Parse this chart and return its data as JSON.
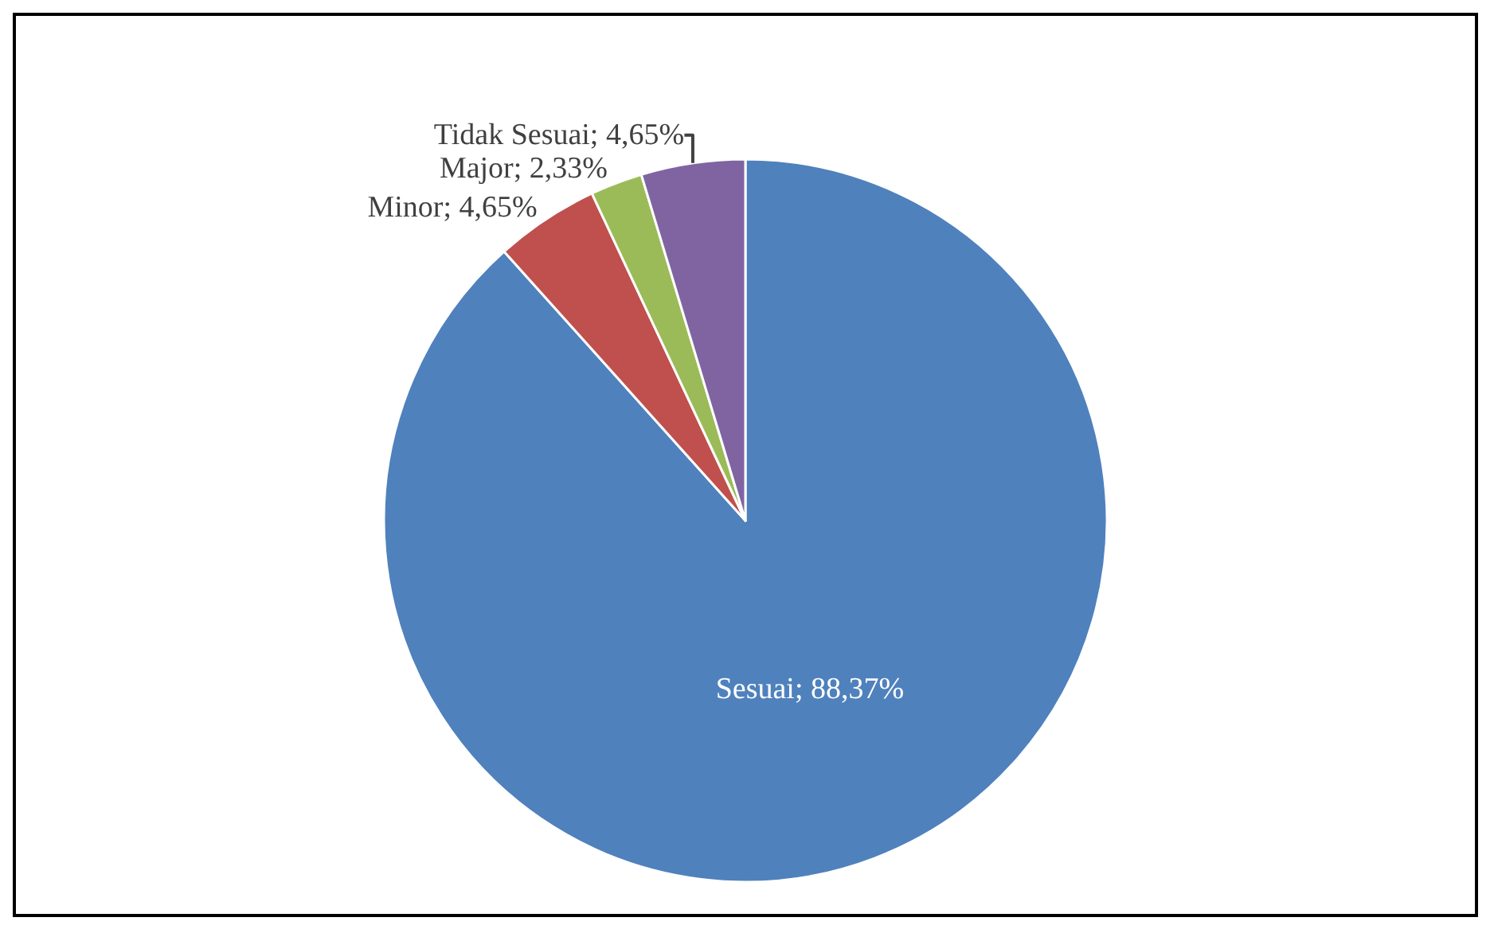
{
  "chart_data": {
    "type": "pie",
    "categories": [
      "Sesuai",
      "Minor",
      "Major",
      "Tidak Sesuai"
    ],
    "values": [
      88.37,
      4.65,
      2.33,
      4.65
    ],
    "value_labels": [
      "88,37%",
      "4,65%",
      "2,33%",
      "4,65%"
    ],
    "colors": [
      "#4f81bd",
      "#c0504d",
      "#9bbb59",
      "#8064a2"
    ],
    "legend": false
  }
}
